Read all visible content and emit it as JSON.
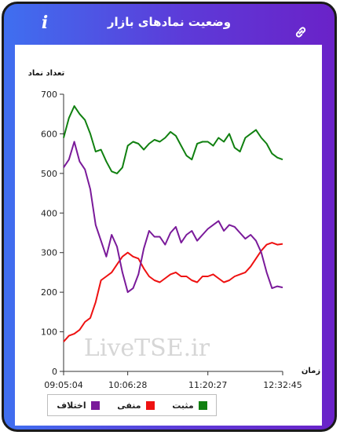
{
  "header": {
    "title": "وضعیت نمادهای بازار",
    "info_icon": "info-icon",
    "link_icon": "link-icon"
  },
  "watermark": "LiveTSE.ir",
  "colors": {
    "positive": "#108010",
    "negative": "#ee1111",
    "difference": "#7a1a9a"
  },
  "chart_data": {
    "type": "line",
    "ylabel": "تعداد نماد",
    "xlabel": "زمان",
    "ylim": [
      0,
      700
    ],
    "yticks": [
      0,
      100,
      200,
      300,
      400,
      500,
      600,
      700
    ],
    "xlim": [
      "09:05:04",
      "12:32:45"
    ],
    "xticks": [
      "09:05:04",
      "10:06:28",
      "11:20:27",
      "12:32:45"
    ],
    "grid": false,
    "legend_position": "bottom",
    "x": [
      "09:05:04",
      "09:10",
      "09:15",
      "09:20",
      "09:25",
      "09:30",
      "09:35",
      "09:40",
      "09:45",
      "09:50",
      "09:55",
      "10:00",
      "10:06:28",
      "10:10",
      "10:15",
      "10:20",
      "10:25",
      "10:30",
      "10:35",
      "10:40",
      "10:45",
      "10:50",
      "10:55",
      "11:00",
      "11:05",
      "11:10",
      "11:15",
      "11:20:27",
      "11:25",
      "11:30",
      "11:35",
      "11:40",
      "11:45",
      "11:50",
      "11:55",
      "12:00",
      "12:05",
      "12:10",
      "12:15",
      "12:20",
      "12:25",
      "12:32:45"
    ],
    "series": [
      {
        "name": "مثبت",
        "color_key": "positive",
        "values": [
          590,
          640,
          670,
          650,
          635,
          600,
          555,
          560,
          530,
          505,
          500,
          515,
          570,
          580,
          575,
          560,
          575,
          585,
          580,
          590,
          605,
          595,
          570,
          545,
          535,
          575,
          580,
          580,
          570,
          590,
          580,
          600,
          565,
          555,
          590,
          600,
          610,
          590,
          575,
          550,
          540,
          535
        ]
      },
      {
        "name": "منفی",
        "color_key": "negative",
        "values": [
          75,
          90,
          95,
          105,
          125,
          135,
          175,
          230,
          240,
          250,
          270,
          290,
          300,
          290,
          285,
          260,
          240,
          230,
          225,
          235,
          245,
          250,
          240,
          240,
          230,
          225,
          240,
          240,
          245,
          235,
          225,
          230,
          240,
          245,
          250,
          265,
          285,
          305,
          320,
          325,
          320,
          322
        ]
      },
      {
        "name": "اختلاف",
        "color_key": "difference",
        "values": [
          515,
          535,
          580,
          530,
          510,
          460,
          370,
          330,
          290,
          345,
          315,
          250,
          200,
          210,
          245,
          310,
          355,
          340,
          340,
          320,
          350,
          365,
          325,
          345,
          355,
          330,
          345,
          360,
          370,
          380,
          355,
          370,
          365,
          350,
          335,
          345,
          330,
          300,
          250,
          210,
          215,
          212
        ]
      }
    ]
  },
  "legend": {
    "items": [
      {
        "label": "مثبت",
        "color_key": "positive"
      },
      {
        "label": "منفی",
        "color_key": "negative"
      },
      {
        "label": "اختلاف",
        "color_key": "difference"
      }
    ]
  }
}
